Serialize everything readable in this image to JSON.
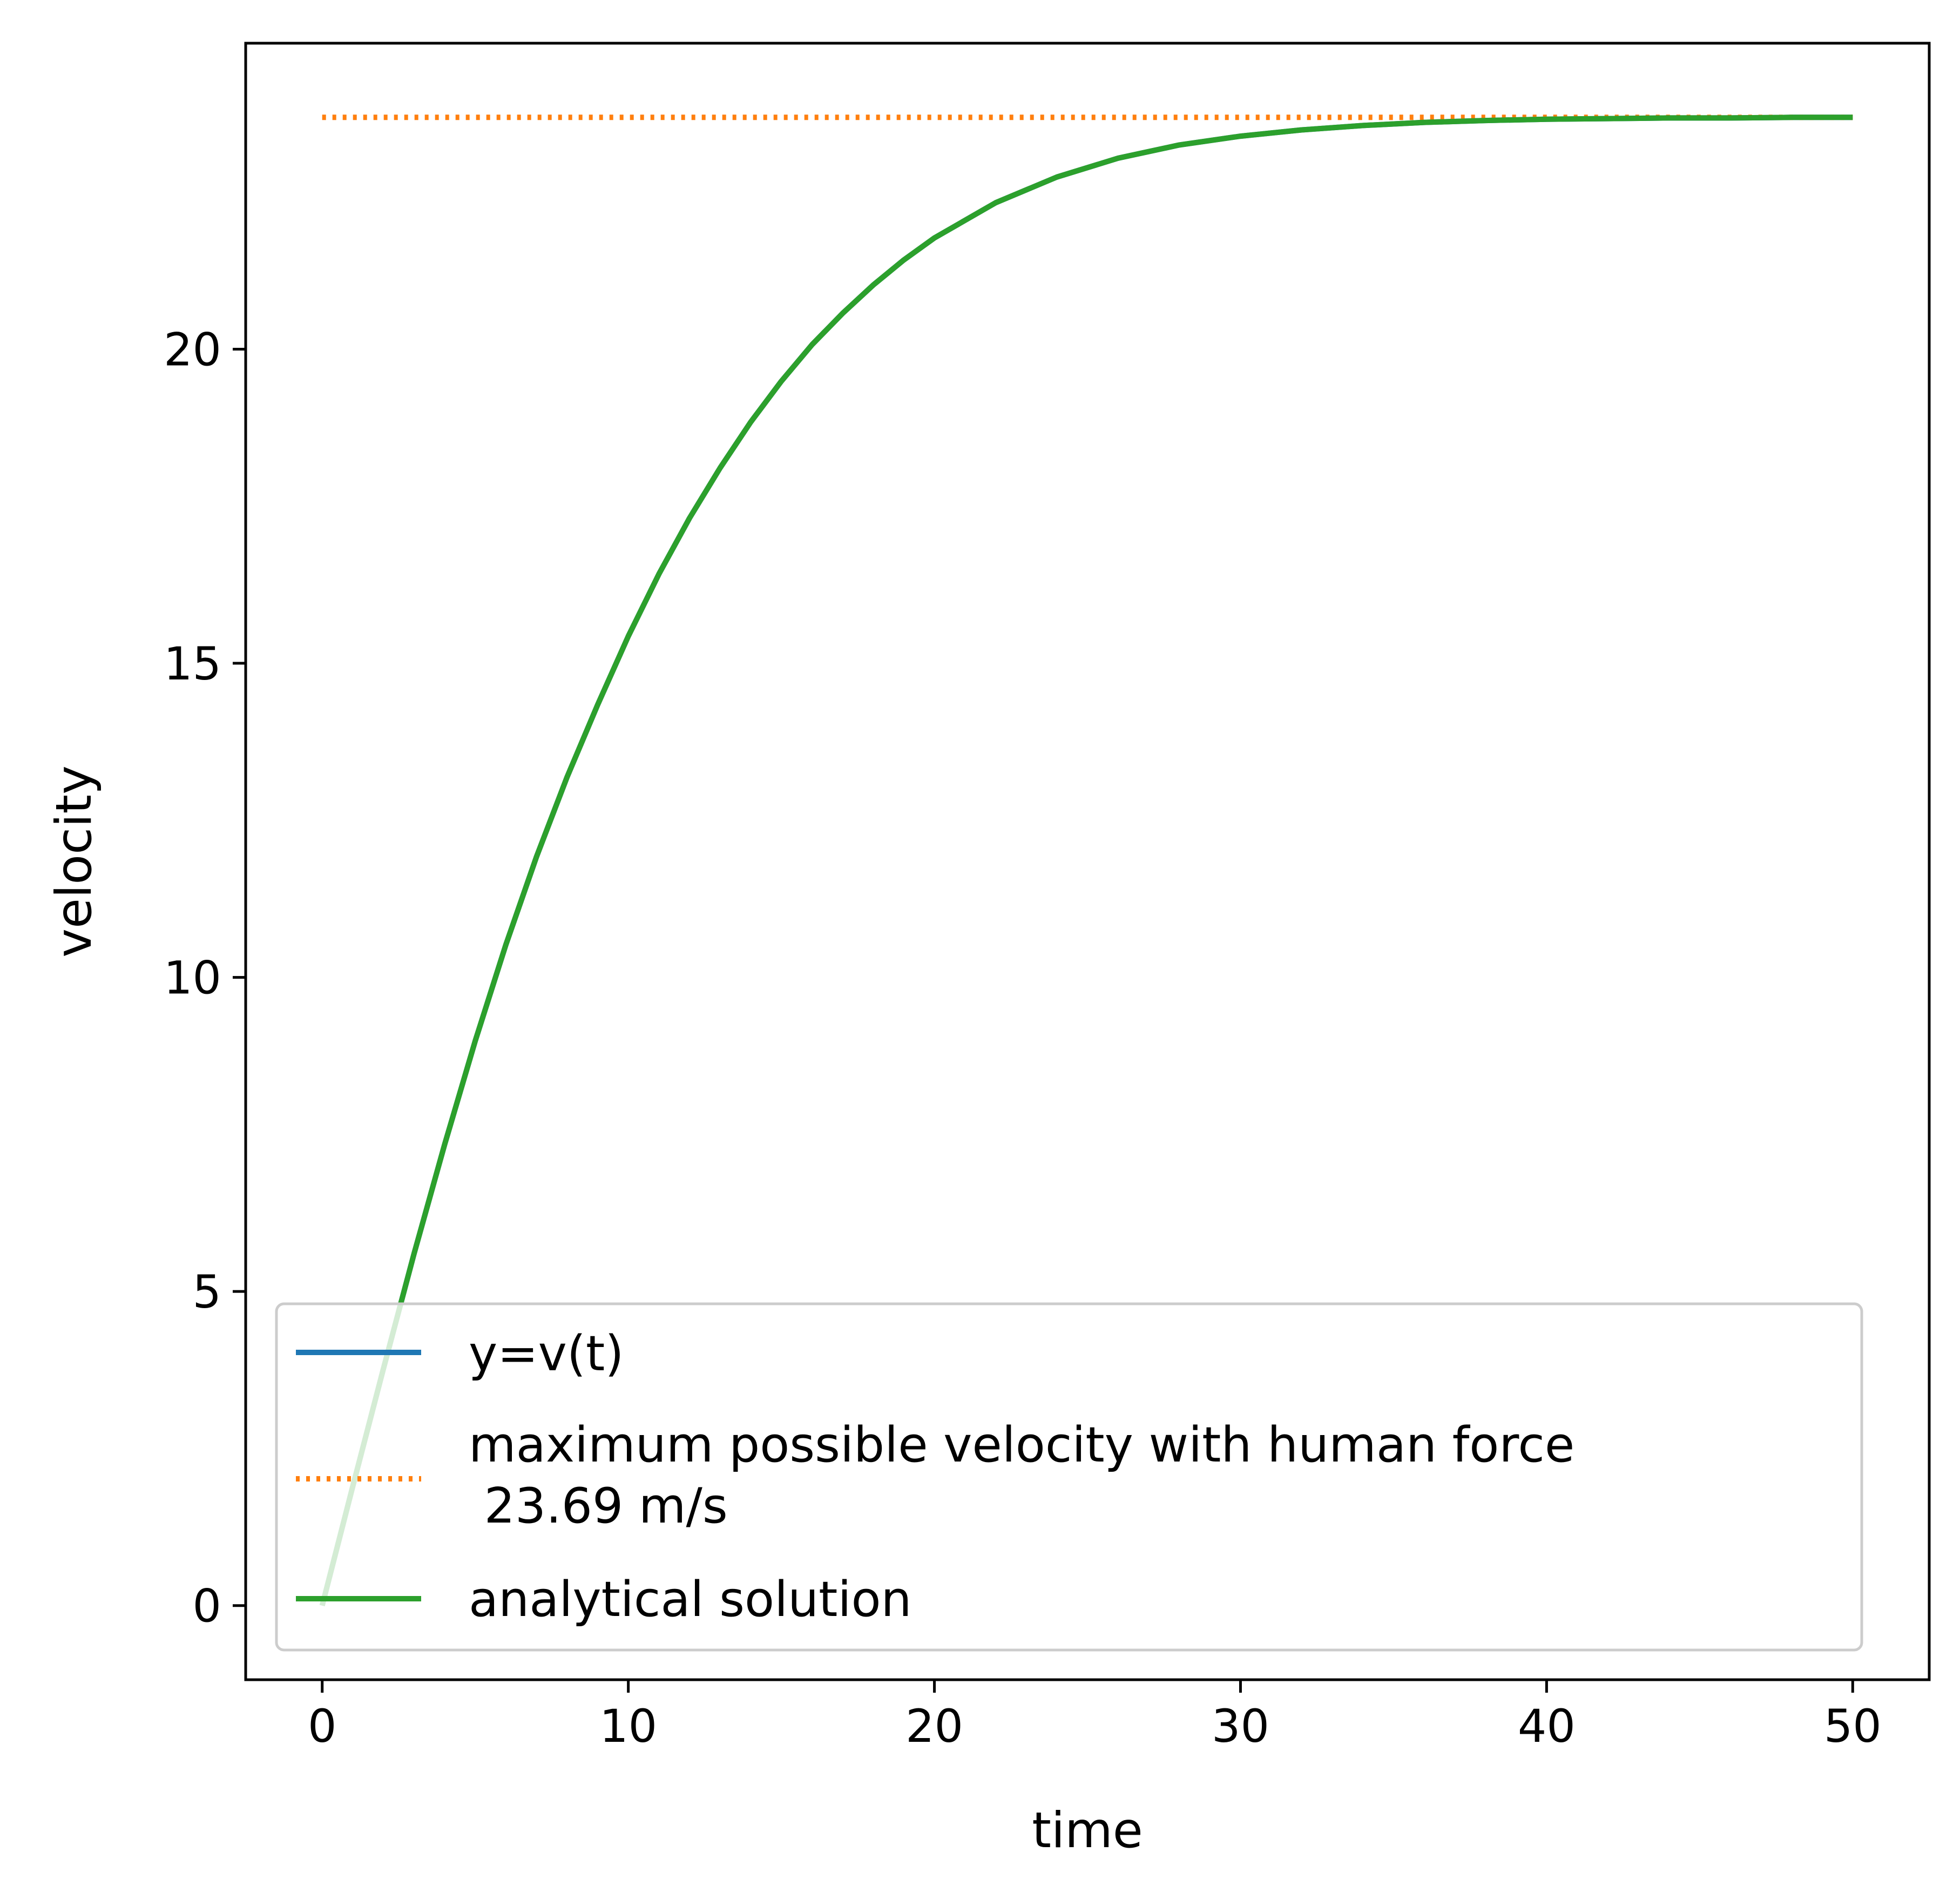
{
  "chart_data": {
    "type": "line",
    "title": "",
    "xlabel": "time",
    "ylabel": "velocity",
    "xlim": [
      -2.5,
      52.5
    ],
    "ylim": [
      -1.18,
      24.87
    ],
    "xticks": [
      0,
      10,
      20,
      30,
      40,
      50
    ],
    "yticks": [
      0,
      5,
      10,
      15,
      20
    ],
    "grid": false,
    "legend_location": "lower right",
    "series": [
      {
        "name": "y=v(t)",
        "color": "#1f77b4",
        "style": "solid",
        "x": [
          0,
          1,
          2,
          3,
          4,
          5,
          6,
          7,
          8,
          9,
          10,
          11,
          12,
          13,
          14,
          15,
          16,
          17,
          18,
          19,
          20,
          22,
          24,
          26,
          28,
          30,
          32,
          34,
          36,
          38,
          40,
          42,
          44,
          46,
          48,
          50
        ],
        "y": [
          0,
          1.9,
          3.77,
          5.6,
          7.34,
          8.99,
          10.52,
          11.92,
          13.19,
          14.34,
          15.43,
          16.42,
          17.31,
          18.11,
          18.84,
          19.49,
          20.07,
          20.57,
          21.02,
          21.42,
          21.77,
          22.33,
          22.74,
          23.04,
          23.25,
          23.39,
          23.49,
          23.56,
          23.61,
          23.64,
          23.66,
          23.67,
          23.68,
          23.68,
          23.69,
          23.69
        ]
      },
      {
        "name": "maximum possible velocity with human force\n 23.69 m/s",
        "color": "#ff7f0e",
        "style": "dotted",
        "x": [
          0,
          50
        ],
        "y": [
          23.69,
          23.69
        ]
      },
      {
        "name": "analytical solution",
        "color": "#2ca02c",
        "style": "solid",
        "x": [
          0,
          1,
          2,
          3,
          4,
          5,
          6,
          7,
          8,
          9,
          10,
          11,
          12,
          13,
          14,
          15,
          16,
          17,
          18,
          19,
          20,
          22,
          24,
          26,
          28,
          30,
          32,
          34,
          36,
          38,
          40,
          42,
          44,
          46,
          48,
          50
        ],
        "y": [
          0,
          1.9,
          3.77,
          5.6,
          7.34,
          8.99,
          10.52,
          11.92,
          13.19,
          14.34,
          15.43,
          16.42,
          17.31,
          18.11,
          18.84,
          19.49,
          20.07,
          20.57,
          21.02,
          21.42,
          21.77,
          22.33,
          22.74,
          23.04,
          23.25,
          23.39,
          23.49,
          23.56,
          23.61,
          23.64,
          23.66,
          23.67,
          23.68,
          23.68,
          23.69,
          23.69
        ]
      }
    ]
  }
}
